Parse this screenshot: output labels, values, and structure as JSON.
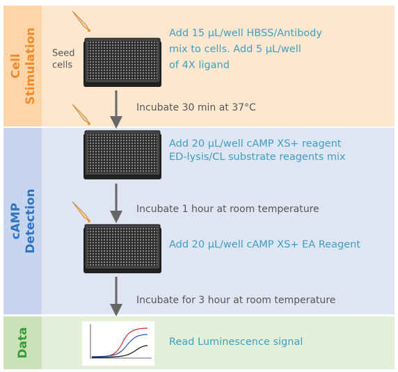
{
  "sections": [
    {
      "title": [
        "Cell",
        "Stimulation"
      ]
    },
    {
      "title": [
        "cAMP",
        "Detection"
      ]
    },
    {
      "title": [
        "Data"
      ]
    }
  ],
  "seed_label": [
    "Seed",
    "cells"
  ],
  "instructions": [
    [
      "Add 15 µL/well HBSS/Antibody",
      "mix to cells.  Add 5 µL/well",
      "of 4X ligand"
    ],
    [
      "Add 20 µL/well cAMP XS+ reagent",
      "ED-lysis/CL substrate reagents mix"
    ],
    [
      "Add 20 µL/well cAMP XS+ EA Reagent"
    ],
    [
      "Read Luminescence signal"
    ]
  ],
  "incubations": [
    "Incubate 30 min at 37°C",
    "Incubate 1 hour at room temperature",
    "Incubate for 3 hour at room temperature"
  ]
}
